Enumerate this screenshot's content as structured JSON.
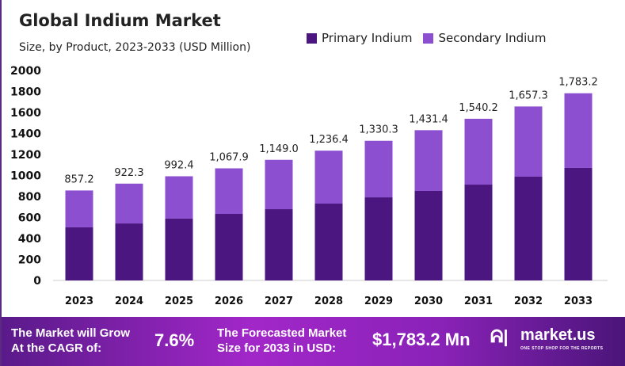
{
  "chart_data": {
    "type": "bar",
    "stacked": true,
    "title": "Global Indium Market",
    "subtitle": "Size, by Product, 2023-2033 (USD Million)",
    "categories": [
      "2023",
      "2024",
      "2025",
      "2026",
      "2027",
      "2028",
      "2029",
      "2030",
      "2031",
      "2032",
      "2033"
    ],
    "series": [
      {
        "name": "Primary Indium",
        "color": "#4b1680",
        "values": [
          506,
          543,
          589,
          634,
          679,
          732,
          792,
          853,
          913,
          989,
          1072
        ]
      },
      {
        "name": "Secondary Indium",
        "color": "#8b4fcf",
        "values": [
          351.2,
          379.3,
          403.4,
          433.9,
          470.0,
          504.4,
          538.3,
          578.4,
          627.2,
          668.3,
          711.2
        ]
      }
    ],
    "totals_labels": [
      "857.2",
      "922.3",
      "992.4",
      "1,067.9",
      "1,149.0",
      "1,236.4",
      "1,330.3",
      "1,431.4",
      "1,540.2",
      "1,657.3",
      "1,783.2"
    ],
    "totals": [
      857.2,
      922.3,
      992.4,
      1067.9,
      1149.0,
      1236.4,
      1330.3,
      1431.4,
      1540.2,
      1657.3,
      1783.2
    ],
    "yticks": [
      "0",
      "200",
      "400",
      "600",
      "800",
      "1000",
      "1200",
      "1400",
      "1600",
      "1800",
      "2000"
    ],
    "ylim": [
      0,
      2000
    ],
    "grid": false,
    "legend": "top-right"
  },
  "banner": {
    "cagr_text_1": "The Market will Grow",
    "cagr_text_2": "At the CAGR of:",
    "cagr_value": "7.6%",
    "forecast_text_1": "The Forecasted Market",
    "forecast_text_2": "Size for 2033 in USD:",
    "forecast_value": "$1,783.2 Mn",
    "brand": "market.us",
    "brand_tagline": "ONE STOP SHOP FOR THE REPORTS"
  }
}
